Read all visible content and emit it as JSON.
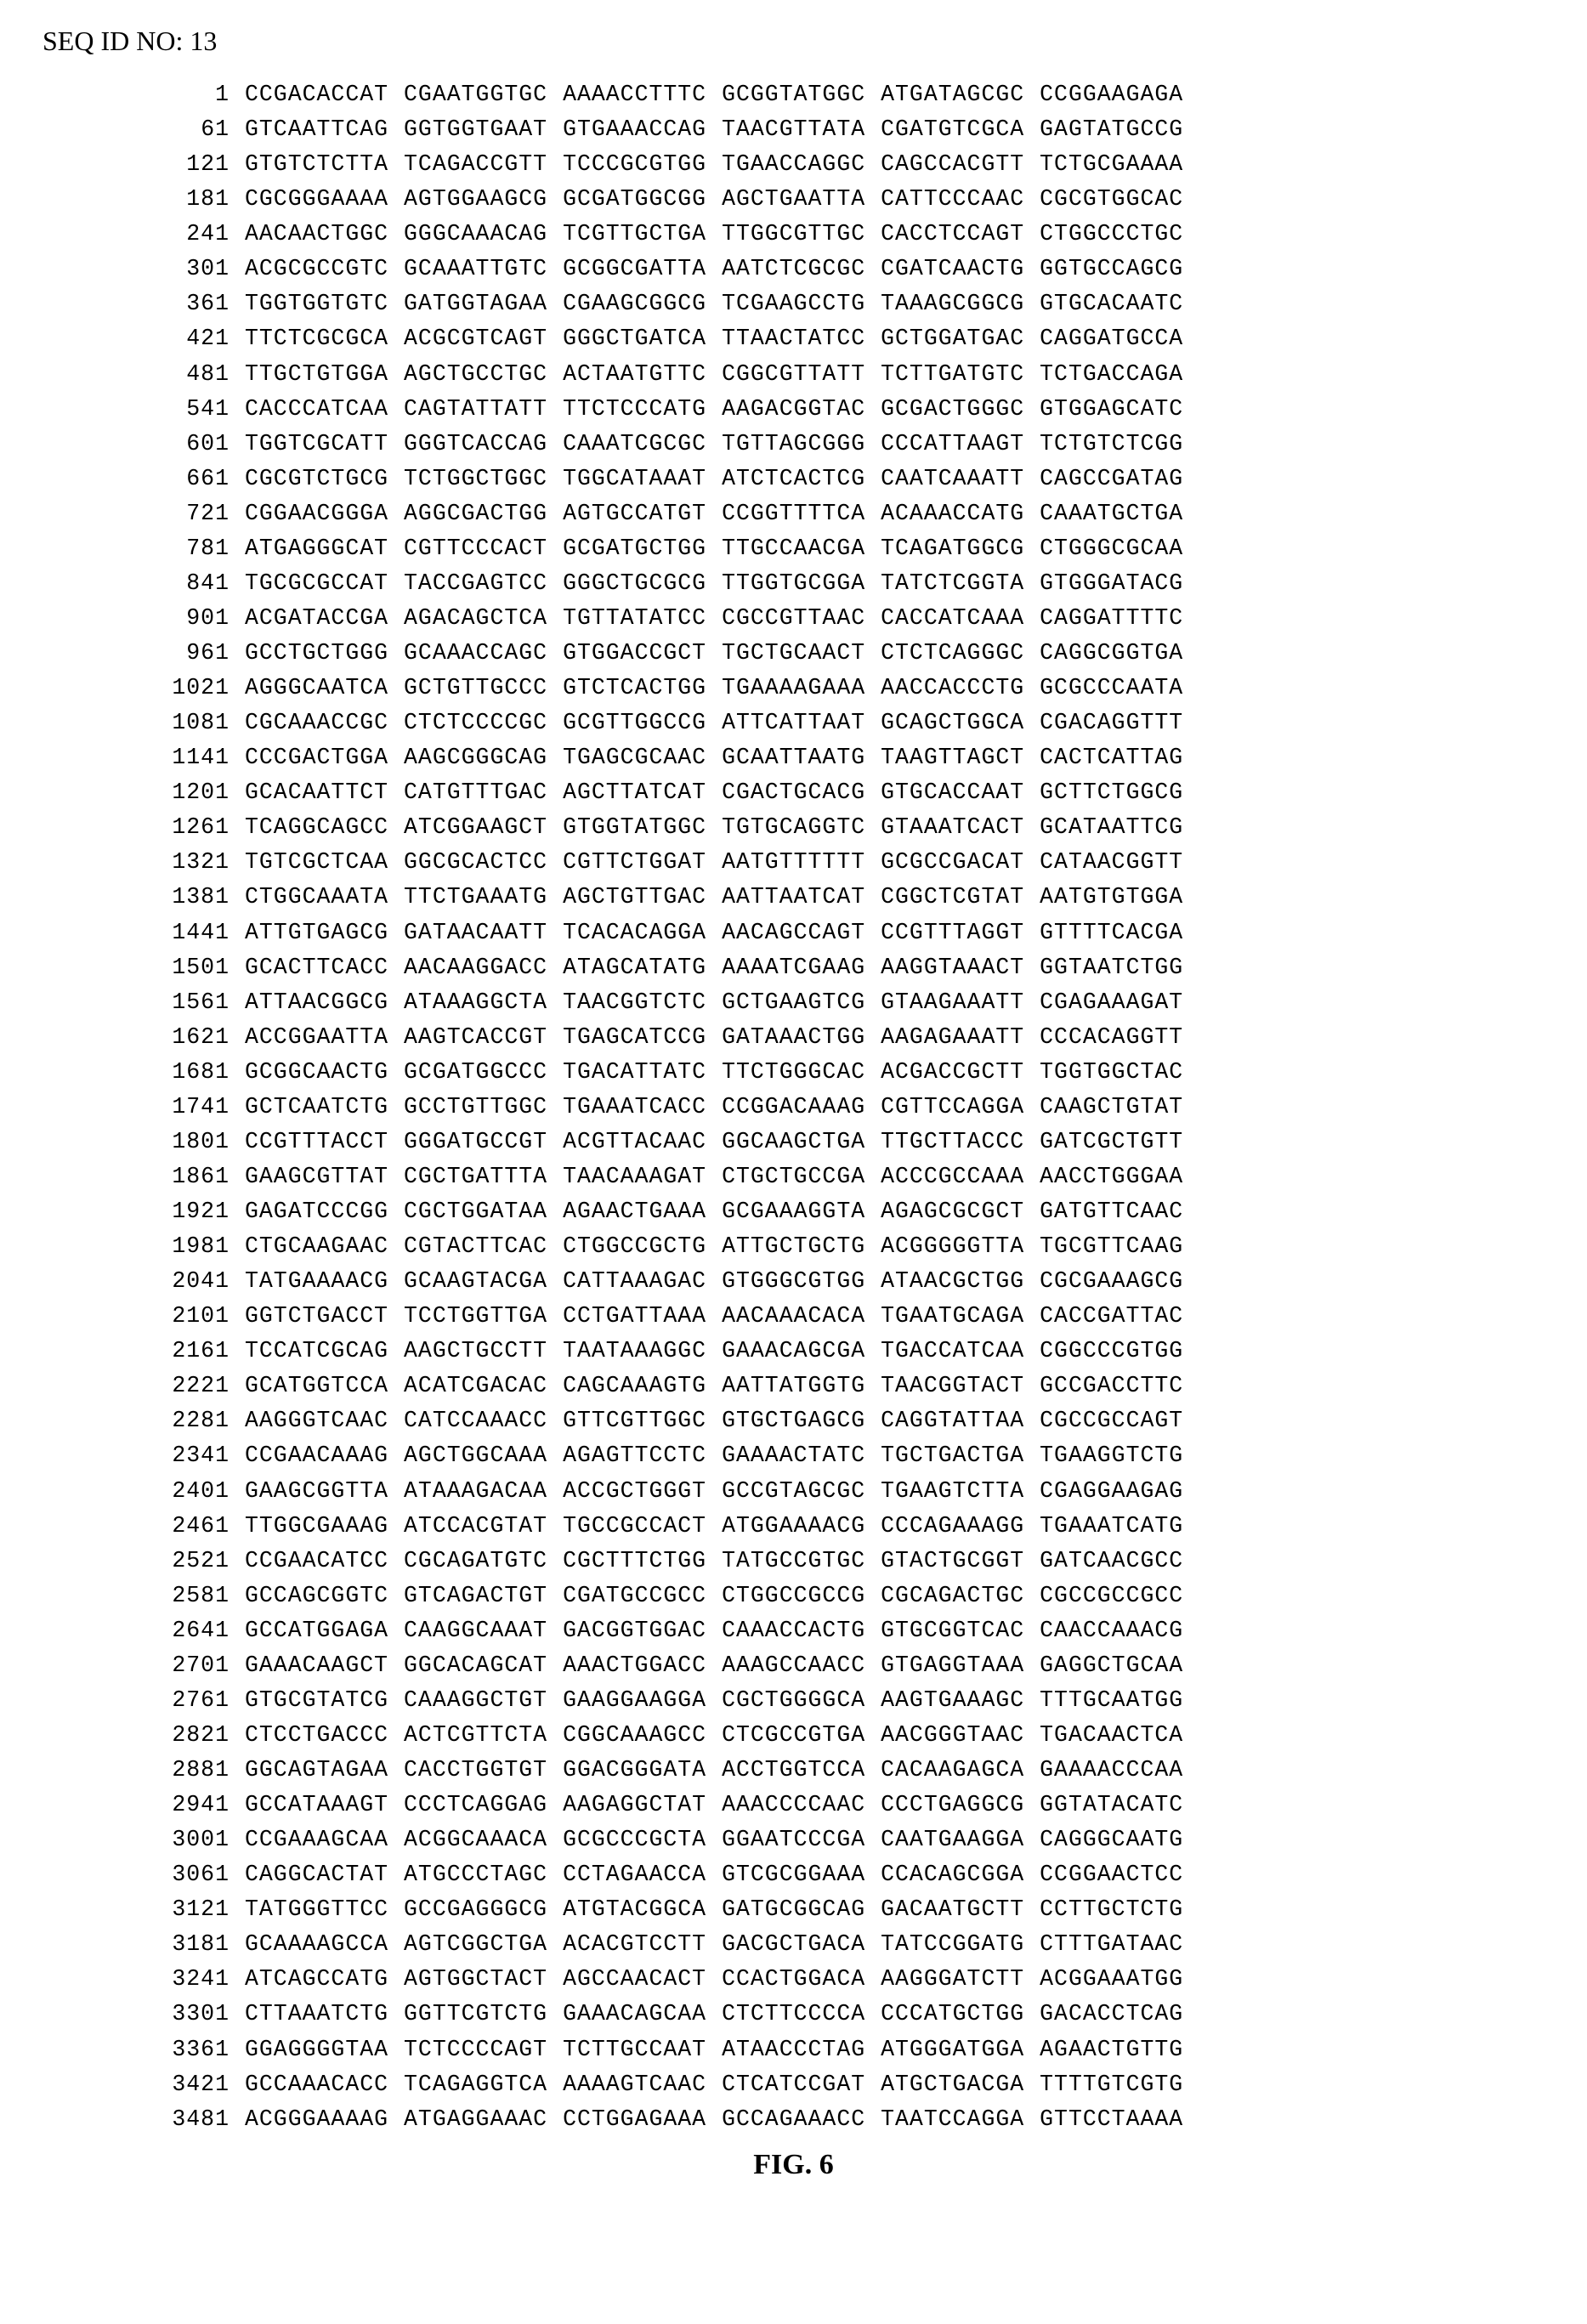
{
  "header": "SEQ ID NO: 13",
  "figure_caption": "FIG. 6",
  "sequence": {
    "block_size": 10,
    "blocks_per_row": 6,
    "rows": [
      {
        "pos": "1",
        "blocks": [
          "CCGACACCAT",
          "CGAATGGTGC",
          "AAAACCTTTC",
          "GCGGTATGGC",
          "ATGATAGCGC",
          "CCGGAAGAGA"
        ]
      },
      {
        "pos": "61",
        "blocks": [
          "GTCAATTCAG",
          "GGTGGTGAAT",
          "GTGAAACCAG",
          "TAACGTTATA",
          "CGATGTCGCA",
          "GAGTATGCCG"
        ]
      },
      {
        "pos": "121",
        "blocks": [
          "GTGTCTCTTA",
          "TCAGACCGTT",
          "TCCCGCGTGG",
          "TGAACCAGGC",
          "CAGCCACGTT",
          "TCTGCGAAAA"
        ]
      },
      {
        "pos": "181",
        "blocks": [
          "CGCGGGAAAA",
          "AGTGGAAGCG",
          "GCGATGGCGG",
          "AGCTGAATTA",
          "CATTCCCAAC",
          "CGCGTGGCAC"
        ]
      },
      {
        "pos": "241",
        "blocks": [
          "AACAACTGGC",
          "GGGCAAACAG",
          "TCGTTGCTGA",
          "TTGGCGTTGC",
          "CACCTCCAGT",
          "CTGGCCCTGC"
        ]
      },
      {
        "pos": "301",
        "blocks": [
          "ACGCGCCGTC",
          "GCAAATTGTC",
          "GCGGCGATTA",
          "AATCTCGCGC",
          "CGATCAACTG",
          "GGTGCCAGCG"
        ]
      },
      {
        "pos": "361",
        "blocks": [
          "TGGTGGTGTC",
          "GATGGTAGAA",
          "CGAAGCGGCG",
          "TCGAAGCCTG",
          "TAAAGCGGCG",
          "GTGCACAATC"
        ]
      },
      {
        "pos": "421",
        "blocks": [
          "TTCTCGCGCA",
          "ACGCGTCAGT",
          "GGGCTGATCA",
          "TTAACTATCC",
          "GCTGGATGAC",
          "CAGGATGCCA"
        ]
      },
      {
        "pos": "481",
        "blocks": [
          "TTGCTGTGGA",
          "AGCTGCCTGC",
          "ACTAATGTTC",
          "CGGCGTTATT",
          "TCTTGATGTC",
          "TCTGACCAGA"
        ]
      },
      {
        "pos": "541",
        "blocks": [
          "CACCCATCAA",
          "CAGTATTATT",
          "TTCTCCCATG",
          "AAGACGGTAC",
          "GCGACTGGGC",
          "GTGGAGCATC"
        ]
      },
      {
        "pos": "601",
        "blocks": [
          "TGGTCGCATT",
          "GGGTCACCAG",
          "CAAATCGCGC",
          "TGTTAGCGGG",
          "CCCATTAAGT",
          "TCTGTCTCGG"
        ]
      },
      {
        "pos": "661",
        "blocks": [
          "CGCGTCTGCG",
          "TCTGGCTGGC",
          "TGGCATAAAT",
          "ATCTCACTCG",
          "CAATCAAATT",
          "CAGCCGATAG"
        ]
      },
      {
        "pos": "721",
        "blocks": [
          "CGGAACGGGA",
          "AGGCGACTGG",
          "AGTGCCATGT",
          "CCGGTTTTCA",
          "ACAAACCATG",
          "CAAATGCTGA"
        ]
      },
      {
        "pos": "781",
        "blocks": [
          "ATGAGGGCAT",
          "CGTTCCCACT",
          "GCGATGCTGG",
          "TTGCCAACGA",
          "TCAGATGGCG",
          "CTGGGCGCAA"
        ]
      },
      {
        "pos": "841",
        "blocks": [
          "TGCGCGCCAT",
          "TACCGAGTCC",
          "GGGCTGCGCG",
          "TTGGTGCGGA",
          "TATCTCGGTA",
          "GTGGGATACG"
        ]
      },
      {
        "pos": "901",
        "blocks": [
          "ACGATACCGA",
          "AGACAGCTCA",
          "TGTTATATCC",
          "CGCCGTTAAC",
          "CACCATCAAA",
          "CAGGATTTTC"
        ]
      },
      {
        "pos": "961",
        "blocks": [
          "GCCTGCTGGG",
          "GCAAACCAGC",
          "GTGGACCGCT",
          "TGCTGCAACT",
          "CTCTCAGGGC",
          "CAGGCGGTGA"
        ]
      },
      {
        "pos": "1021",
        "blocks": [
          "AGGGCAATCA",
          "GCTGTTGCCC",
          "GTCTCACTGG",
          "TGAAAAGAAA",
          "AACCACCCTG",
          "GCGCCCAATA"
        ]
      },
      {
        "pos": "1081",
        "blocks": [
          "CGCAAACCGC",
          "CTCTCCCCGC",
          "GCGTTGGCCG",
          "ATTCATTAAT",
          "GCAGCTGGCA",
          "CGACAGGTTT"
        ]
      },
      {
        "pos": "1141",
        "blocks": [
          "CCCGACTGGA",
          "AAGCGGGCAG",
          "TGAGCGCAAC",
          "GCAATTAATG",
          "TAAGTTAGCT",
          "CACTCATTAG"
        ]
      },
      {
        "pos": "1201",
        "blocks": [
          "GCACAATTCT",
          "CATGTTTGAC",
          "AGCTTATCAT",
          "CGACTGCACG",
          "GTGCACCAAT",
          "GCTTCTGGCG"
        ]
      },
      {
        "pos": "1261",
        "blocks": [
          "TCAGGCAGCC",
          "ATCGGAAGCT",
          "GTGGTATGGC",
          "TGTGCAGGTC",
          "GTAAATCACT",
          "GCATAATTCG"
        ]
      },
      {
        "pos": "1321",
        "blocks": [
          "TGTCGCTCAA",
          "GGCGCACTCC",
          "CGTTCTGGAT",
          "AATGTTTTTT",
          "GCGCCGACAT",
          "CATAACGGTT"
        ]
      },
      {
        "pos": "1381",
        "blocks": [
          "CTGGCAAATA",
          "TTCTGAAATG",
          "AGCTGTTGAC",
          "AATTAATCAT",
          "CGGCTCGTAT",
          "AATGTGTGGA"
        ]
      },
      {
        "pos": "1441",
        "blocks": [
          "ATTGTGAGCG",
          "GATAACAATT",
          "TCACACAGGA",
          "AACAGCCAGT",
          "CCGTTTAGGT",
          "GTTTTCACGA"
        ]
      },
      {
        "pos": "1501",
        "blocks": [
          "GCACTTCACC",
          "AACAAGGACC",
          "ATAGCATATG",
          "AAAATCGAAG",
          "AAGGTAAACT",
          "GGTAATCTGG"
        ]
      },
      {
        "pos": "1561",
        "blocks": [
          "ATTAACGGCG",
          "ATAAAGGCTA",
          "TAACGGTCTC",
          "GCTGAAGTCG",
          "GTAAGAAATT",
          "CGAGAAAGAT"
        ]
      },
      {
        "pos": "1621",
        "blocks": [
          "ACCGGAATTA",
          "AAGTCACCGT",
          "TGAGCATCCG",
          "GATAAACTGG",
          "AAGAGAAATT",
          "CCCACAGGTT"
        ]
      },
      {
        "pos": "1681",
        "blocks": [
          "GCGGCAACTG",
          "GCGATGGCCC",
          "TGACATTATC",
          "TTCTGGGCAC",
          "ACGACCGCTT",
          "TGGTGGCTAC"
        ]
      },
      {
        "pos": "1741",
        "blocks": [
          "GCTCAATCTG",
          "GCCTGTTGGC",
          "TGAAATCACC",
          "CCGGACAAAG",
          "CGTTCCAGGA",
          "CAAGCTGTAT"
        ]
      },
      {
        "pos": "1801",
        "blocks": [
          "CCGTTTACCT",
          "GGGATGCCGT",
          "ACGTTACAAC",
          "GGCAAGCTGA",
          "TTGCTTACCC",
          "GATCGCTGTT"
        ]
      },
      {
        "pos": "1861",
        "blocks": [
          "GAAGCGTTAT",
          "CGCTGATTTA",
          "TAACAAAGAT",
          "CTGCTGCCGA",
          "ACCCGCCAAA",
          "AACCTGGGAA"
        ]
      },
      {
        "pos": "1921",
        "blocks": [
          "GAGATCCCGG",
          "CGCTGGATAA",
          "AGAACTGAAA",
          "GCGAAAGGTA",
          "AGAGCGCGCT",
          "GATGTTCAAC"
        ]
      },
      {
        "pos": "1981",
        "blocks": [
          "CTGCAAGAAC",
          "CGTACTTCAC",
          "CTGGCCGCTG",
          "ATTGCTGCTG",
          "ACGGGGGTTA",
          "TGCGTTCAAG"
        ]
      },
      {
        "pos": "2041",
        "blocks": [
          "TATGAAAACG",
          "GCAAGTACGA",
          "CATTAAAGAC",
          "GTGGGCGTGG",
          "ATAACGCTGG",
          "CGCGAAAGCG"
        ]
      },
      {
        "pos": "2101",
        "blocks": [
          "GGTCTGACCT",
          "TCCTGGTTGA",
          "CCTGATTAAA",
          "AACAAACACA",
          "TGAATGCAGA",
          "CACCGATTAC"
        ]
      },
      {
        "pos": "2161",
        "blocks": [
          "TCCATCGCAG",
          "AAGCTGCCTT",
          "TAATAAAGGC",
          "GAAACAGCGA",
          "TGACCATCAA",
          "CGGCCCGTGG"
        ]
      },
      {
        "pos": "2221",
        "blocks": [
          "GCATGGTCCA",
          "ACATCGACAC",
          "CAGCAAAGTG",
          "AATTATGGTG",
          "TAACGGTACT",
          "GCCGACCTTC"
        ]
      },
      {
        "pos": "2281",
        "blocks": [
          "AAGGGTCAAC",
          "CATCCAAACC",
          "GTTCGTTGGC",
          "GTGCTGAGCG",
          "CAGGTATTAA",
          "CGCCGCCAGT"
        ]
      },
      {
        "pos": "2341",
        "blocks": [
          "CCGAACAAAG",
          "AGCTGGCAAA",
          "AGAGTTCCTC",
          "GAAAACTATC",
          "TGCTGACTGA",
          "TGAAGGTCTG"
        ]
      },
      {
        "pos": "2401",
        "blocks": [
          "GAAGCGGTTA",
          "ATAAAGACAA",
          "ACCGCTGGGT",
          "GCCGTAGCGC",
          "TGAAGTCTTA",
          "CGAGGAAGAG"
        ]
      },
      {
        "pos": "2461",
        "blocks": [
          "TTGGCGAAAG",
          "ATCCACGTAT",
          "TGCCGCCACT",
          "ATGGAAAACG",
          "CCCAGAAAGG",
          "TGAAATCATG"
        ]
      },
      {
        "pos": "2521",
        "blocks": [
          "CCGAACATCC",
          "CGCAGATGTC",
          "CGCTTTCTGG",
          "TATGCCGTGC",
          "GTACTGCGGT",
          "GATCAACGCC"
        ]
      },
      {
        "pos": "2581",
        "blocks": [
          "GCCAGCGGTC",
          "GTCAGACTGT",
          "CGATGCCGCC",
          "CTGGCCGCCG",
          "CGCAGACTGC",
          "CGCCGCCGCC"
        ]
      },
      {
        "pos": "2641",
        "blocks": [
          "GCCATGGAGA",
          "CAAGGCAAAT",
          "GACGGTGGAC",
          "CAAACCACTG",
          "GTGCGGTCAC",
          "CAACCAAACG"
        ]
      },
      {
        "pos": "2701",
        "blocks": [
          "GAAACAAGCT",
          "GGCACAGCAT",
          "AAACTGGACC",
          "AAAGCCAACC",
          "GTGAGGTAAA",
          "GAGGCTGCAA"
        ]
      },
      {
        "pos": "2761",
        "blocks": [
          "GTGCGTATCG",
          "CAAAGGCTGT",
          "GAAGGAAGGA",
          "CGCTGGGGCA",
          "AAGTGAAAGC",
          "TTTGCAATGG"
        ]
      },
      {
        "pos": "2821",
        "blocks": [
          "CTCCTGACCC",
          "ACTCGTTCTA",
          "CGGCAAAGCC",
          "CTCGCCGTGA",
          "AACGGGTAAC",
          "TGACAACTCA"
        ]
      },
      {
        "pos": "2881",
        "blocks": [
          "GGCAGTAGAA",
          "CACCTGGTGT",
          "GGACGGGATA",
          "ACCTGGTCCA",
          "CACAAGAGCA",
          "GAAAACCCAA"
        ]
      },
      {
        "pos": "2941",
        "blocks": [
          "GCCATAAAGT",
          "CCCTCAGGAG",
          "AAGAGGCTAT",
          "AAACCCCAAC",
          "CCCTGAGGCG",
          "GGTATACATC"
        ]
      },
      {
        "pos": "3001",
        "blocks": [
          "CCGAAAGCAA",
          "ACGGCAAACA",
          "GCGCCCGCTA",
          "GGAATCCCGA",
          "CAATGAAGGA",
          "CAGGGCAATG"
        ]
      },
      {
        "pos": "3061",
        "blocks": [
          "CAGGCACTAT",
          "ATGCCCTAGC",
          "CCTAGAACCA",
          "GTCGCGGAAA",
          "CCACAGCGGA",
          "CCGGAACTCC"
        ]
      },
      {
        "pos": "3121",
        "blocks": [
          "TATGGGTTCC",
          "GCCGAGGGCG",
          "ATGTACGGCA",
          "GATGCGGCAG",
          "GACAATGCTT",
          "CCTTGCTCTG"
        ]
      },
      {
        "pos": "3181",
        "blocks": [
          "GCAAAAGCCA",
          "AGTCGGCTGA",
          "ACACGTCCTT",
          "GACGCTGACA",
          "TATCCGGATG",
          "CTTTGATAAC"
        ]
      },
      {
        "pos": "3241",
        "blocks": [
          "ATCAGCCATG",
          "AGTGGCTACT",
          "AGCCAACACT",
          "CCACTGGACA",
          "AAGGGATCTT",
          "ACGGAAATGG"
        ]
      },
      {
        "pos": "3301",
        "blocks": [
          "CTTAAATCTG",
          "GGTTCGTCTG",
          "GAAACAGCAA",
          "CTCTTCCCCA",
          "CCCATGCTGG",
          "GACACCTCAG"
        ]
      },
      {
        "pos": "3361",
        "blocks": [
          "GGAGGGGTAA",
          "TCTCCCCAGT",
          "TCTTGCCAAT",
          "ATAACCCTAG",
          "ATGGGATGGA",
          "AGAACTGTTG"
        ]
      },
      {
        "pos": "3421",
        "blocks": [
          "GCCAAACACC",
          "TCAGAGGTCA",
          "AAAAGTCAAC",
          "CTCATCCGAT",
          "ATGCTGACGA",
          "TTTTGTCGTG"
        ]
      },
      {
        "pos": "3481",
        "blocks": [
          "ACGGGAAAAG",
          "ATGAGGAAAC",
          "CCTGGAGAAA",
          "GCCAGAAACC",
          "TAATCCAGGA",
          "GTTCCTAAAA"
        ]
      }
    ]
  }
}
